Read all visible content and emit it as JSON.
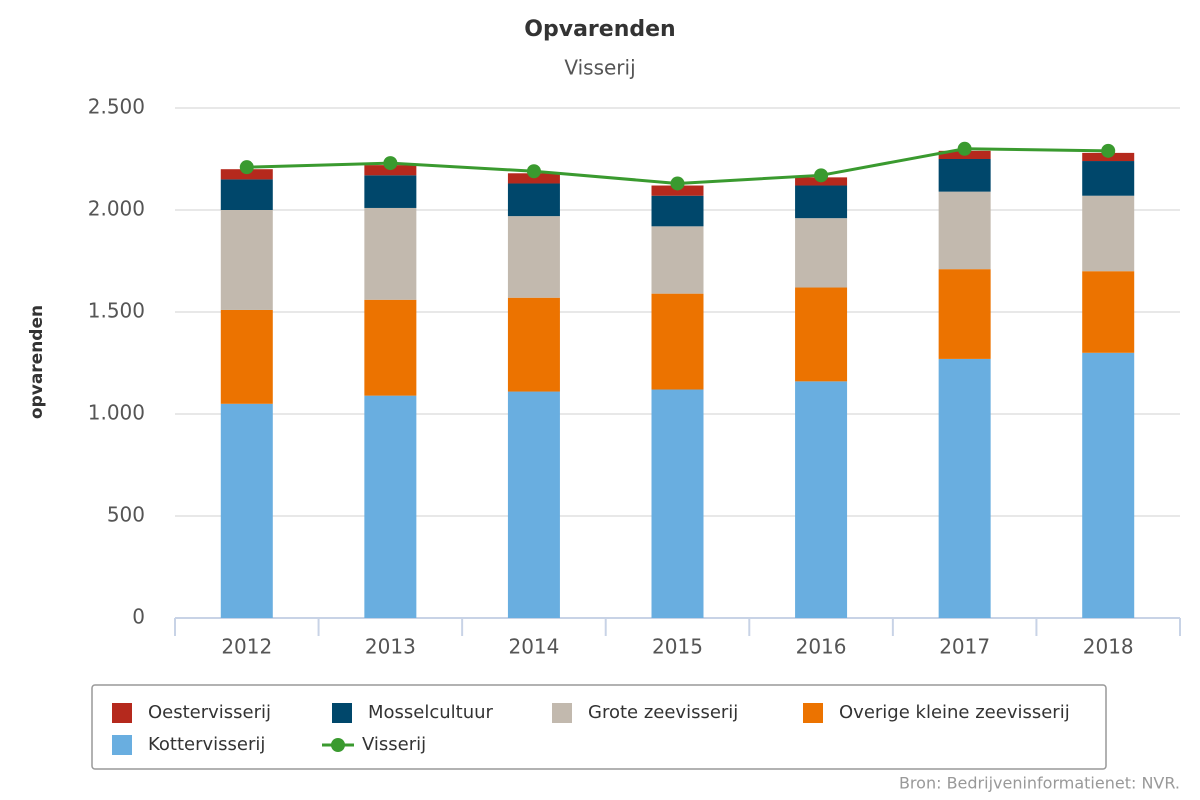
{
  "chart_data": {
    "type": "bar",
    "stacked": true,
    "title": "Opvarenden",
    "subtitle": "Visserij",
    "y_label": "opvarenden",
    "source": "Bron: Bedrijveninformatienet: NVR.",
    "categories": [
      "2012",
      "2013",
      "2014",
      "2015",
      "2016",
      "2017",
      "2018"
    ],
    "series": [
      {
        "name": "Oestervisserij",
        "color": "#b5291d",
        "values": [
          50,
          50,
          50,
          50,
          40,
          40,
          40
        ]
      },
      {
        "name": "Mosselcultuur",
        "color": "#00476b",
        "values": [
          150,
          160,
          160,
          150,
          160,
          160,
          170
        ]
      },
      {
        "name": "Grote zeevisserij",
        "color": "#c2b9ae",
        "values": [
          490,
          450,
          400,
          330,
          340,
          380,
          370
        ]
      },
      {
        "name": "Overige kleine zeevisserij",
        "color": "#ec7300",
        "values": [
          460,
          470,
          460,
          470,
          460,
          440,
          400
        ]
      },
      {
        "name": "Kottervisserij",
        "color": "#69aee0",
        "values": [
          1050,
          1090,
          1110,
          1120,
          1160,
          1270,
          1300
        ]
      },
      {
        "name": "Visserij",
        "color": "#3a9a2f",
        "type": "line",
        "values": [
          2210,
          2230,
          2190,
          2130,
          2170,
          2300,
          2290
        ]
      }
    ],
    "ylim": [
      0,
      2500
    ],
    "yticks": [
      0,
      500,
      {
        "value": 1000,
        "label": "1.000"
      },
      {
        "value": 1500,
        "label": "1.500"
      },
      {
        "value": 2000,
        "label": "2.000"
      },
      {
        "value": 2500,
        "label": "2.500"
      }
    ],
    "grid": true,
    "legend": "bottom"
  }
}
